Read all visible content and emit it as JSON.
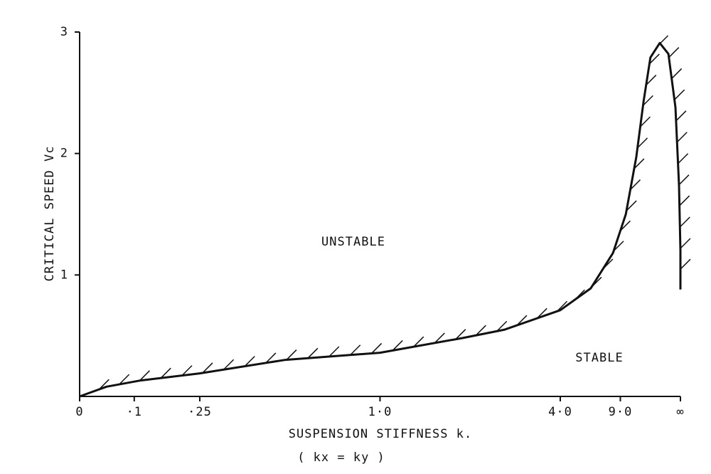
{
  "chart_data": {
    "type": "line",
    "y_label": "CRITICAL SPEED Vc",
    "x_label": "SUSPENSION STIFFNESS k.",
    "x_sublabel": "( kx = ky )",
    "annotations": [
      "UNSTABLE",
      "STABLE"
    ],
    "xscale": "k/(1+k)",
    "xlim": [
      0,
      "Infinity"
    ],
    "xticks": [
      0,
      {
        "value": 0.1,
        "label": "·1"
      },
      {
        "value": 0.25,
        "label": "·25"
      },
      {
        "value": 1,
        "label": "1·0"
      },
      {
        "value": 4,
        "label": "4·0"
      },
      {
        "value": 9,
        "label": "9·0"
      },
      {
        "value": "Infinity",
        "label": "∞"
      }
    ],
    "ylim": [
      0,
      3
    ],
    "yticks": [
      1,
      2,
      3
    ],
    "color": "#111111",
    "x": [
      0,
      0.047,
      0.111,
      0.25,
      0.517,
      1.0,
      1.75,
      2.42,
      4.0,
      5.7,
      7.9,
      10,
      12.6,
      15.3,
      19,
      28,
      49,
      120,
      420,
      "Infinity",
      "Infinity"
    ],
    "values": [
      0,
      0.08,
      0.13,
      0.19,
      0.3,
      0.36,
      0.48,
      0.55,
      0.71,
      0.89,
      1.18,
      1.5,
      1.97,
      2.43,
      2.79,
      2.91,
      2.82,
      2.38,
      1.74,
      1.2,
      0.88
    ]
  }
}
